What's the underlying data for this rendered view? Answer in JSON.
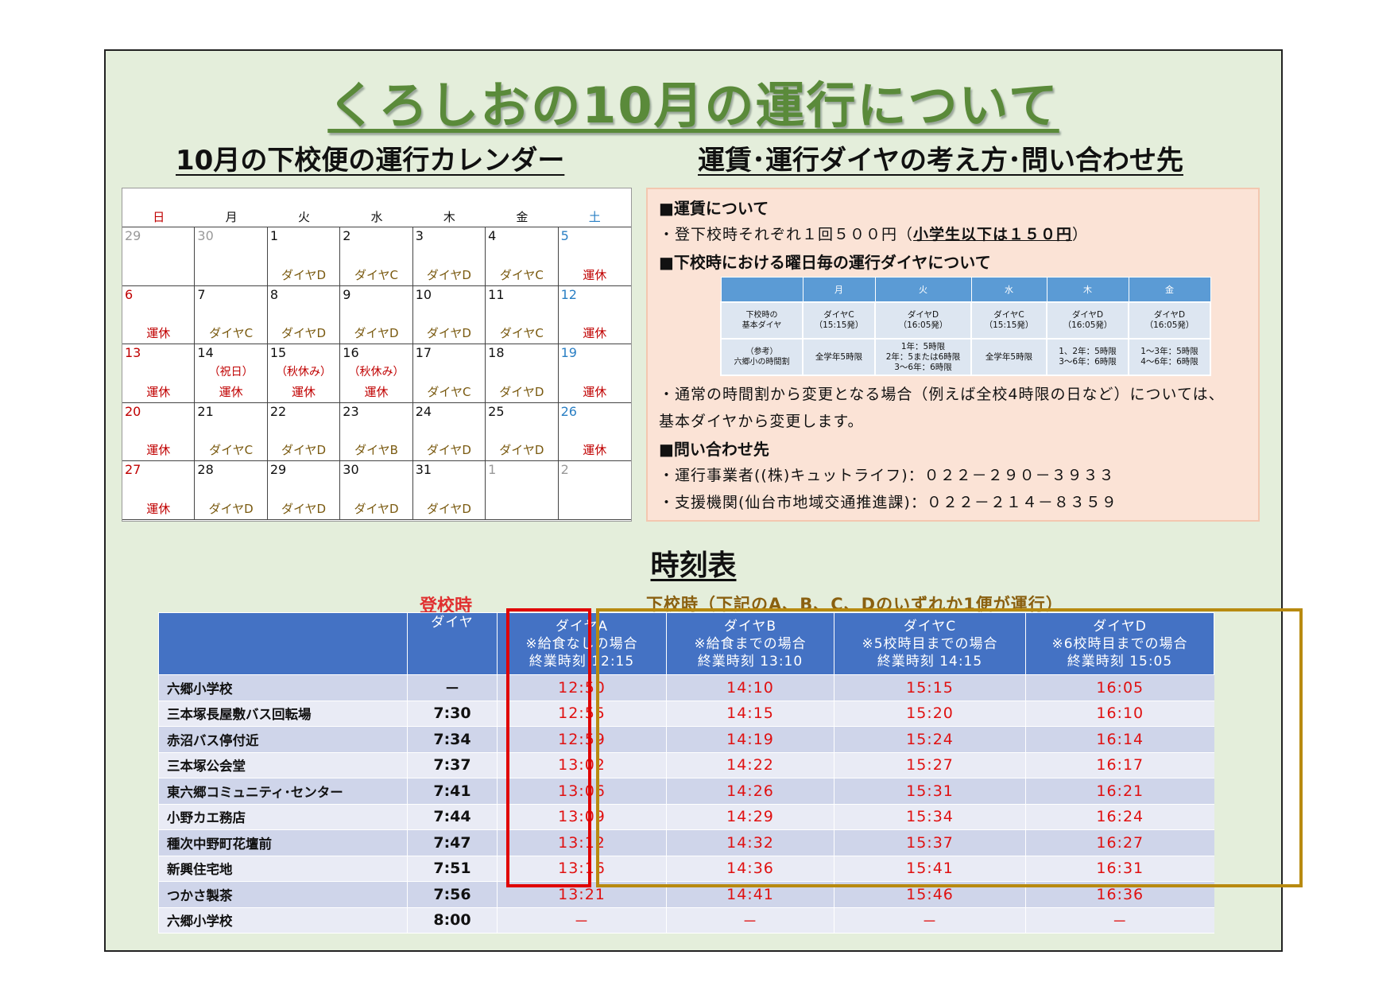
{
  "title": "くろしおの10月の運行について",
  "calendar_heading": "10月の下校便の運行カレンダー",
  "info_heading": "運賃･運行ダイヤの考え方･問い合わせ先",
  "calendar": {
    "weekdays": [
      "日",
      "月",
      "火",
      "水",
      "木",
      "金",
      "土"
    ],
    "cells": [
      {
        "d": "29",
        "s": ""
      },
      {
        "d": "30",
        "s": ""
      },
      {
        "d": "1",
        "s": "ダイヤD"
      },
      {
        "d": "2",
        "s": "ダイヤC"
      },
      {
        "d": "3",
        "s": "ダイヤD"
      },
      {
        "d": "4",
        "s": "ダイヤC"
      },
      {
        "d": "5",
        "s": "運休"
      },
      {
        "d": "6",
        "s": "運休"
      },
      {
        "d": "7",
        "s": "ダイヤC"
      },
      {
        "d": "8",
        "s": "ダイヤD"
      },
      {
        "d": "9",
        "s": "ダイヤD"
      },
      {
        "d": "10",
        "s": "ダイヤD"
      },
      {
        "d": "11",
        "s": "ダイヤC"
      },
      {
        "d": "12",
        "s": "運休"
      },
      {
        "d": "13",
        "s": "運休"
      },
      {
        "d": "14",
        "n": "（祝日）",
        "s": "運休"
      },
      {
        "d": "15",
        "n": "（秋休み）",
        "s": "運休"
      },
      {
        "d": "16",
        "n": "（秋休み）",
        "s": "運休"
      },
      {
        "d": "17",
        "s": "ダイヤC"
      },
      {
        "d": "18",
        "s": "ダイヤD"
      },
      {
        "d": "19",
        "s": "運休"
      },
      {
        "d": "20",
        "s": "運休"
      },
      {
        "d": "21",
        "s": "ダイヤC"
      },
      {
        "d": "22",
        "s": "ダイヤD"
      },
      {
        "d": "23",
        "s": "ダイヤB"
      },
      {
        "d": "24",
        "s": "ダイヤD"
      },
      {
        "d": "25",
        "s": "ダイヤD"
      },
      {
        "d": "26",
        "s": "運休"
      },
      {
        "d": "27",
        "s": "運休"
      },
      {
        "d": "28",
        "s": "ダイヤD"
      },
      {
        "d": "29",
        "s": "ダイヤD"
      },
      {
        "d": "30",
        "s": "ダイヤD"
      },
      {
        "d": "31",
        "s": "ダイヤD"
      },
      {
        "d": "1",
        "s": ""
      },
      {
        "d": "2",
        "s": ""
      }
    ]
  },
  "info": {
    "fare_heading": "■運賃について",
    "fare_text": "・登下校時それぞれ１回５００円（",
    "fare_child": "小学生以下は１５０円",
    "fare_close": "）",
    "diagram_heading": "■下校時における曜日毎の運行ダイヤについて",
    "diagram_table": {
      "headers": [
        "",
        "月",
        "火",
        "水",
        "木",
        "金"
      ],
      "row1": [
        "下校時の\n基本ダイヤ",
        "ダイヤC\n（15:15発）",
        "ダイヤD\n（16:05発）",
        "ダイヤC\n（15:15発）",
        "ダイヤD\n（16:05発）",
        "ダイヤD\n（16:05発）"
      ],
      "row2": [
        "（参考）\n六郷小の時間割",
        "全学年5時限",
        "1年：5時限\n2年：5または6時限\n3～6年：6時限",
        "全学年5時限",
        "1、2年：5時限\n3～6年：6時限",
        "1～3年：5時限\n4～6年：6時限"
      ]
    },
    "note_line1": "・通常の時間割から変更となる場合（例えば全校4時限の日など）については、",
    "note_line2": "基本ダイヤから変更します。",
    "contact_heading": "■問い合わせ先",
    "contact1": "・運行事業者((株)キュットライフ)：０２２－２９０－３９３３",
    "contact2": "・支援機関(仙台市地域交通推進課)：０２２－２１４－８３５９"
  },
  "timetable": {
    "title": "時刻表",
    "label_morning": "登校時",
    "label_afternoon": "下校時（下記のA、B、C、Dのいずれか1便が運行）",
    "headers": [
      "",
      "ダイヤ",
      "ダイヤA\n※給食なしの場合\n終業時刻 12:15",
      "ダイヤB\n※給食までの場合\n終業時刻 13:10",
      "ダイヤC\n※5校時目までの場合\n終業時刻 14:15",
      "ダイヤD\n※6校時目までの場合\n終業時刻 15:05"
    ],
    "rows": [
      [
        "六郷小学校",
        "－",
        "12:50",
        "14:10",
        "15:15",
        "16:05"
      ],
      [
        "三本塚長屋敷バス回転場",
        "7:30",
        "12:55",
        "14:15",
        "15:20",
        "16:10"
      ],
      [
        "赤沼バス停付近",
        "7:34",
        "12:59",
        "14:19",
        "15:24",
        "16:14"
      ],
      [
        "三本塚公会堂",
        "7:37",
        "13:02",
        "14:22",
        "15:27",
        "16:17"
      ],
      [
        "東六郷コミュニティ･センター",
        "7:41",
        "13:06",
        "14:26",
        "15:31",
        "16:21"
      ],
      [
        "小野カエ務店",
        "7:44",
        "13:09",
        "14:29",
        "15:34",
        "16:24"
      ],
      [
        "種次中野町花壇前",
        "7:47",
        "13:12",
        "14:32",
        "15:37",
        "16:27"
      ],
      [
        "新興住宅地",
        "7:51",
        "13:16",
        "14:36",
        "15:41",
        "16:31"
      ],
      [
        "つかさ製茶",
        "7:56",
        "13:21",
        "14:41",
        "15:46",
        "16:36"
      ],
      [
        "六郷小学校",
        "8:00",
        "－",
        "－",
        "－",
        "－"
      ]
    ]
  }
}
